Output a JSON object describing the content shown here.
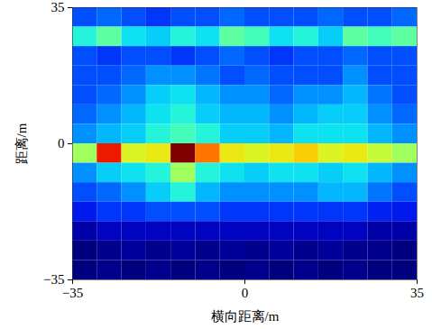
{
  "chart_data": {
    "type": "heatmap",
    "x_label": "横向距离/m",
    "y_label": "距离/m",
    "xlim": [
      -35,
      35
    ],
    "ylim": [
      -35,
      35
    ],
    "xticks": [
      -35,
      0,
      35
    ],
    "yticks": [
      -35,
      0,
      35
    ],
    "x": [
      -32.5,
      -27.5,
      -22.5,
      -17.5,
      -12.5,
      -7.5,
      -2.5,
      2.5,
      7.5,
      12.5,
      17.5,
      22.5,
      27.5,
      32.5
    ],
    "y": [
      32.5,
      27.5,
      22.5,
      17.5,
      12.5,
      7.5,
      2.5,
      -2.5,
      -7.5,
      -12.5,
      -17.5,
      -22.5,
      -27.5,
      -32.5
    ],
    "values": [
      [
        0.3,
        0.32,
        0.3,
        0.28,
        0.3,
        0.3,
        0.32,
        0.3,
        0.3,
        0.3,
        0.32,
        0.3,
        0.3,
        0.32
      ],
      [
        0.45,
        0.5,
        0.42,
        0.4,
        0.45,
        0.42,
        0.5,
        0.48,
        0.42,
        0.45,
        0.4,
        0.5,
        0.48,
        0.5
      ],
      [
        0.3,
        0.28,
        0.3,
        0.3,
        0.28,
        0.3,
        0.32,
        0.3,
        0.28,
        0.3,
        0.3,
        0.32,
        0.3,
        0.3
      ],
      [
        0.3,
        0.3,
        0.32,
        0.35,
        0.35,
        0.33,
        0.3,
        0.32,
        0.3,
        0.3,
        0.3,
        0.35,
        0.3,
        0.3
      ],
      [
        0.3,
        0.32,
        0.35,
        0.4,
        0.42,
        0.38,
        0.35,
        0.35,
        0.32,
        0.35,
        0.35,
        0.38,
        0.33,
        0.3
      ],
      [
        0.32,
        0.35,
        0.38,
        0.42,
        0.45,
        0.4,
        0.38,
        0.38,
        0.35,
        0.38,
        0.4,
        0.4,
        0.35,
        0.32
      ],
      [
        0.35,
        0.38,
        0.4,
        0.45,
        0.48,
        0.45,
        0.4,
        0.4,
        0.38,
        0.42,
        0.42,
        0.42,
        0.38,
        0.35
      ],
      [
        0.55,
        0.8,
        0.6,
        0.62,
        0.9,
        0.72,
        0.62,
        0.6,
        0.62,
        0.65,
        0.6,
        0.62,
        0.58,
        0.55
      ],
      [
        0.35,
        0.4,
        0.42,
        0.45,
        0.55,
        0.45,
        0.42,
        0.4,
        0.42,
        0.42,
        0.4,
        0.42,
        0.38,
        0.35
      ],
      [
        0.3,
        0.32,
        0.35,
        0.4,
        0.45,
        0.38,
        0.35,
        0.35,
        0.35,
        0.35,
        0.38,
        0.38,
        0.33,
        0.3
      ],
      [
        0.25,
        0.28,
        0.28,
        0.3,
        0.3,
        0.3,
        0.28,
        0.28,
        0.28,
        0.28,
        0.28,
        0.28,
        0.26,
        0.25
      ],
      [
        0.18,
        0.2,
        0.2,
        0.2,
        0.2,
        0.2,
        0.2,
        0.2,
        0.2,
        0.2,
        0.2,
        0.2,
        0.18,
        0.18
      ],
      [
        0.15,
        0.16,
        0.17,
        0.16,
        0.17,
        0.16,
        0.17,
        0.16,
        0.17,
        0.16,
        0.17,
        0.16,
        0.16,
        0.15
      ],
      [
        0.15,
        0.16,
        0.15,
        0.16,
        0.15,
        0.16,
        0.15,
        0.16,
        0.15,
        0.16,
        0.15,
        0.16,
        0.15,
        0.15
      ]
    ]
  }
}
